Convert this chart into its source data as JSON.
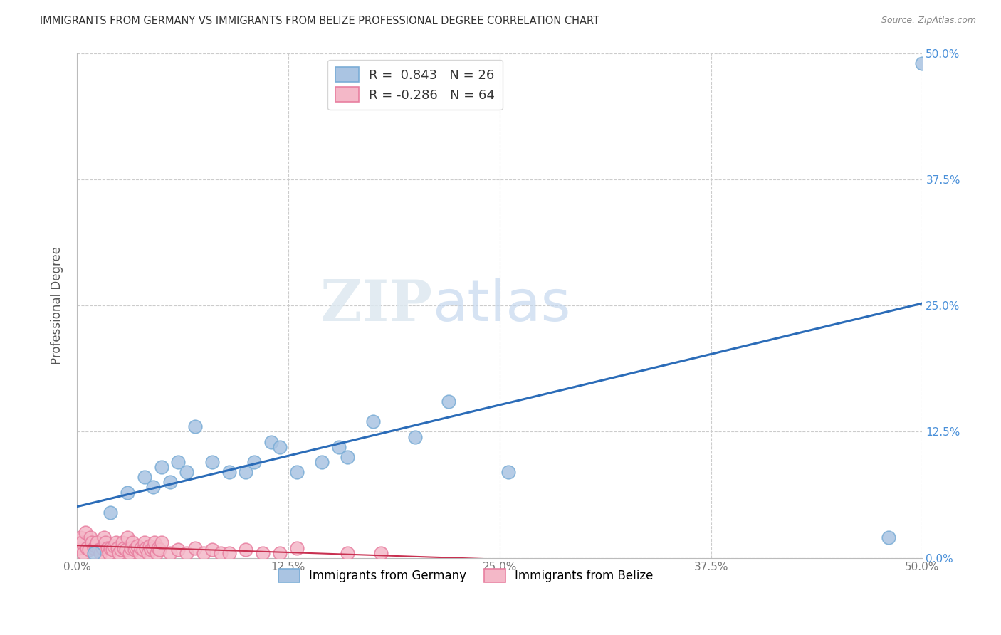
{
  "title": "IMMIGRANTS FROM GERMANY VS IMMIGRANTS FROM BELIZE PROFESSIONAL DEGREE CORRELATION CHART",
  "source": "Source: ZipAtlas.com",
  "ylabel": "Professional Degree",
  "xlim": [
    0.0,
    0.5
  ],
  "ylim": [
    0.0,
    0.5
  ],
  "xtick_vals": [
    0.0,
    0.125,
    0.25,
    0.375,
    0.5
  ],
  "ytick_vals": [
    0.0,
    0.125,
    0.25,
    0.375,
    0.5
  ],
  "germany_color": "#aac4e2",
  "germany_edge": "#7aadd6",
  "belize_color": "#f4b8c8",
  "belize_edge": "#e87fa0",
  "germany_line_color": "#2b6cb8",
  "belize_line_color": "#c83050",
  "germany_R": 0.843,
  "germany_N": 26,
  "belize_R": -0.286,
  "belize_N": 64,
  "watermark_zip": "ZIP",
  "watermark_atlas": "atlas",
  "right_tick_color": "#4a90d9",
  "germany_scatter_x": [
    0.01,
    0.02,
    0.03,
    0.04,
    0.045,
    0.05,
    0.055,
    0.06,
    0.065,
    0.07,
    0.08,
    0.09,
    0.1,
    0.105,
    0.115,
    0.12,
    0.13,
    0.145,
    0.155,
    0.16,
    0.175,
    0.2,
    0.22,
    0.255,
    0.48,
    0.5
  ],
  "germany_scatter_y": [
    0.005,
    0.045,
    0.065,
    0.08,
    0.07,
    0.09,
    0.075,
    0.095,
    0.085,
    0.13,
    0.095,
    0.085,
    0.085,
    0.095,
    0.115,
    0.11,
    0.085,
    0.095,
    0.11,
    0.1,
    0.135,
    0.12,
    0.155,
    0.085,
    0.02,
    0.49
  ],
  "belize_scatter_x": [
    0.001,
    0.002,
    0.003,
    0.004,
    0.005,
    0.006,
    0.007,
    0.008,
    0.009,
    0.01,
    0.011,
    0.012,
    0.013,
    0.014,
    0.015,
    0.016,
    0.017,
    0.018,
    0.019,
    0.02,
    0.021,
    0.022,
    0.023,
    0.024,
    0.025,
    0.026,
    0.027,
    0.028,
    0.029,
    0.03,
    0.031,
    0.032,
    0.033,
    0.034,
    0.035,
    0.036,
    0.037,
    0.038,
    0.039,
    0.04,
    0.041,
    0.042,
    0.043,
    0.044,
    0.045,
    0.046,
    0.047,
    0.048,
    0.049,
    0.05,
    0.055,
    0.06,
    0.065,
    0.07,
    0.075,
    0.08,
    0.085,
    0.09,
    0.1,
    0.11,
    0.12,
    0.13,
    0.16,
    0.18
  ],
  "belize_scatter_y": [
    0.01,
    0.02,
    0.015,
    0.005,
    0.025,
    0.01,
    0.008,
    0.02,
    0.015,
    0.01,
    0.012,
    0.015,
    0.008,
    0.005,
    0.01,
    0.02,
    0.015,
    0.01,
    0.005,
    0.01,
    0.008,
    0.012,
    0.015,
    0.01,
    0.005,
    0.008,
    0.015,
    0.01,
    0.008,
    0.02,
    0.005,
    0.01,
    0.015,
    0.008,
    0.01,
    0.012,
    0.005,
    0.01,
    0.008,
    0.015,
    0.01,
    0.005,
    0.012,
    0.008,
    0.01,
    0.015,
    0.005,
    0.01,
    0.008,
    0.015,
    0.005,
    0.008,
    0.005,
    0.01,
    0.005,
    0.008,
    0.005,
    0.005,
    0.008,
    0.005,
    0.005,
    0.01,
    0.005,
    0.005
  ]
}
